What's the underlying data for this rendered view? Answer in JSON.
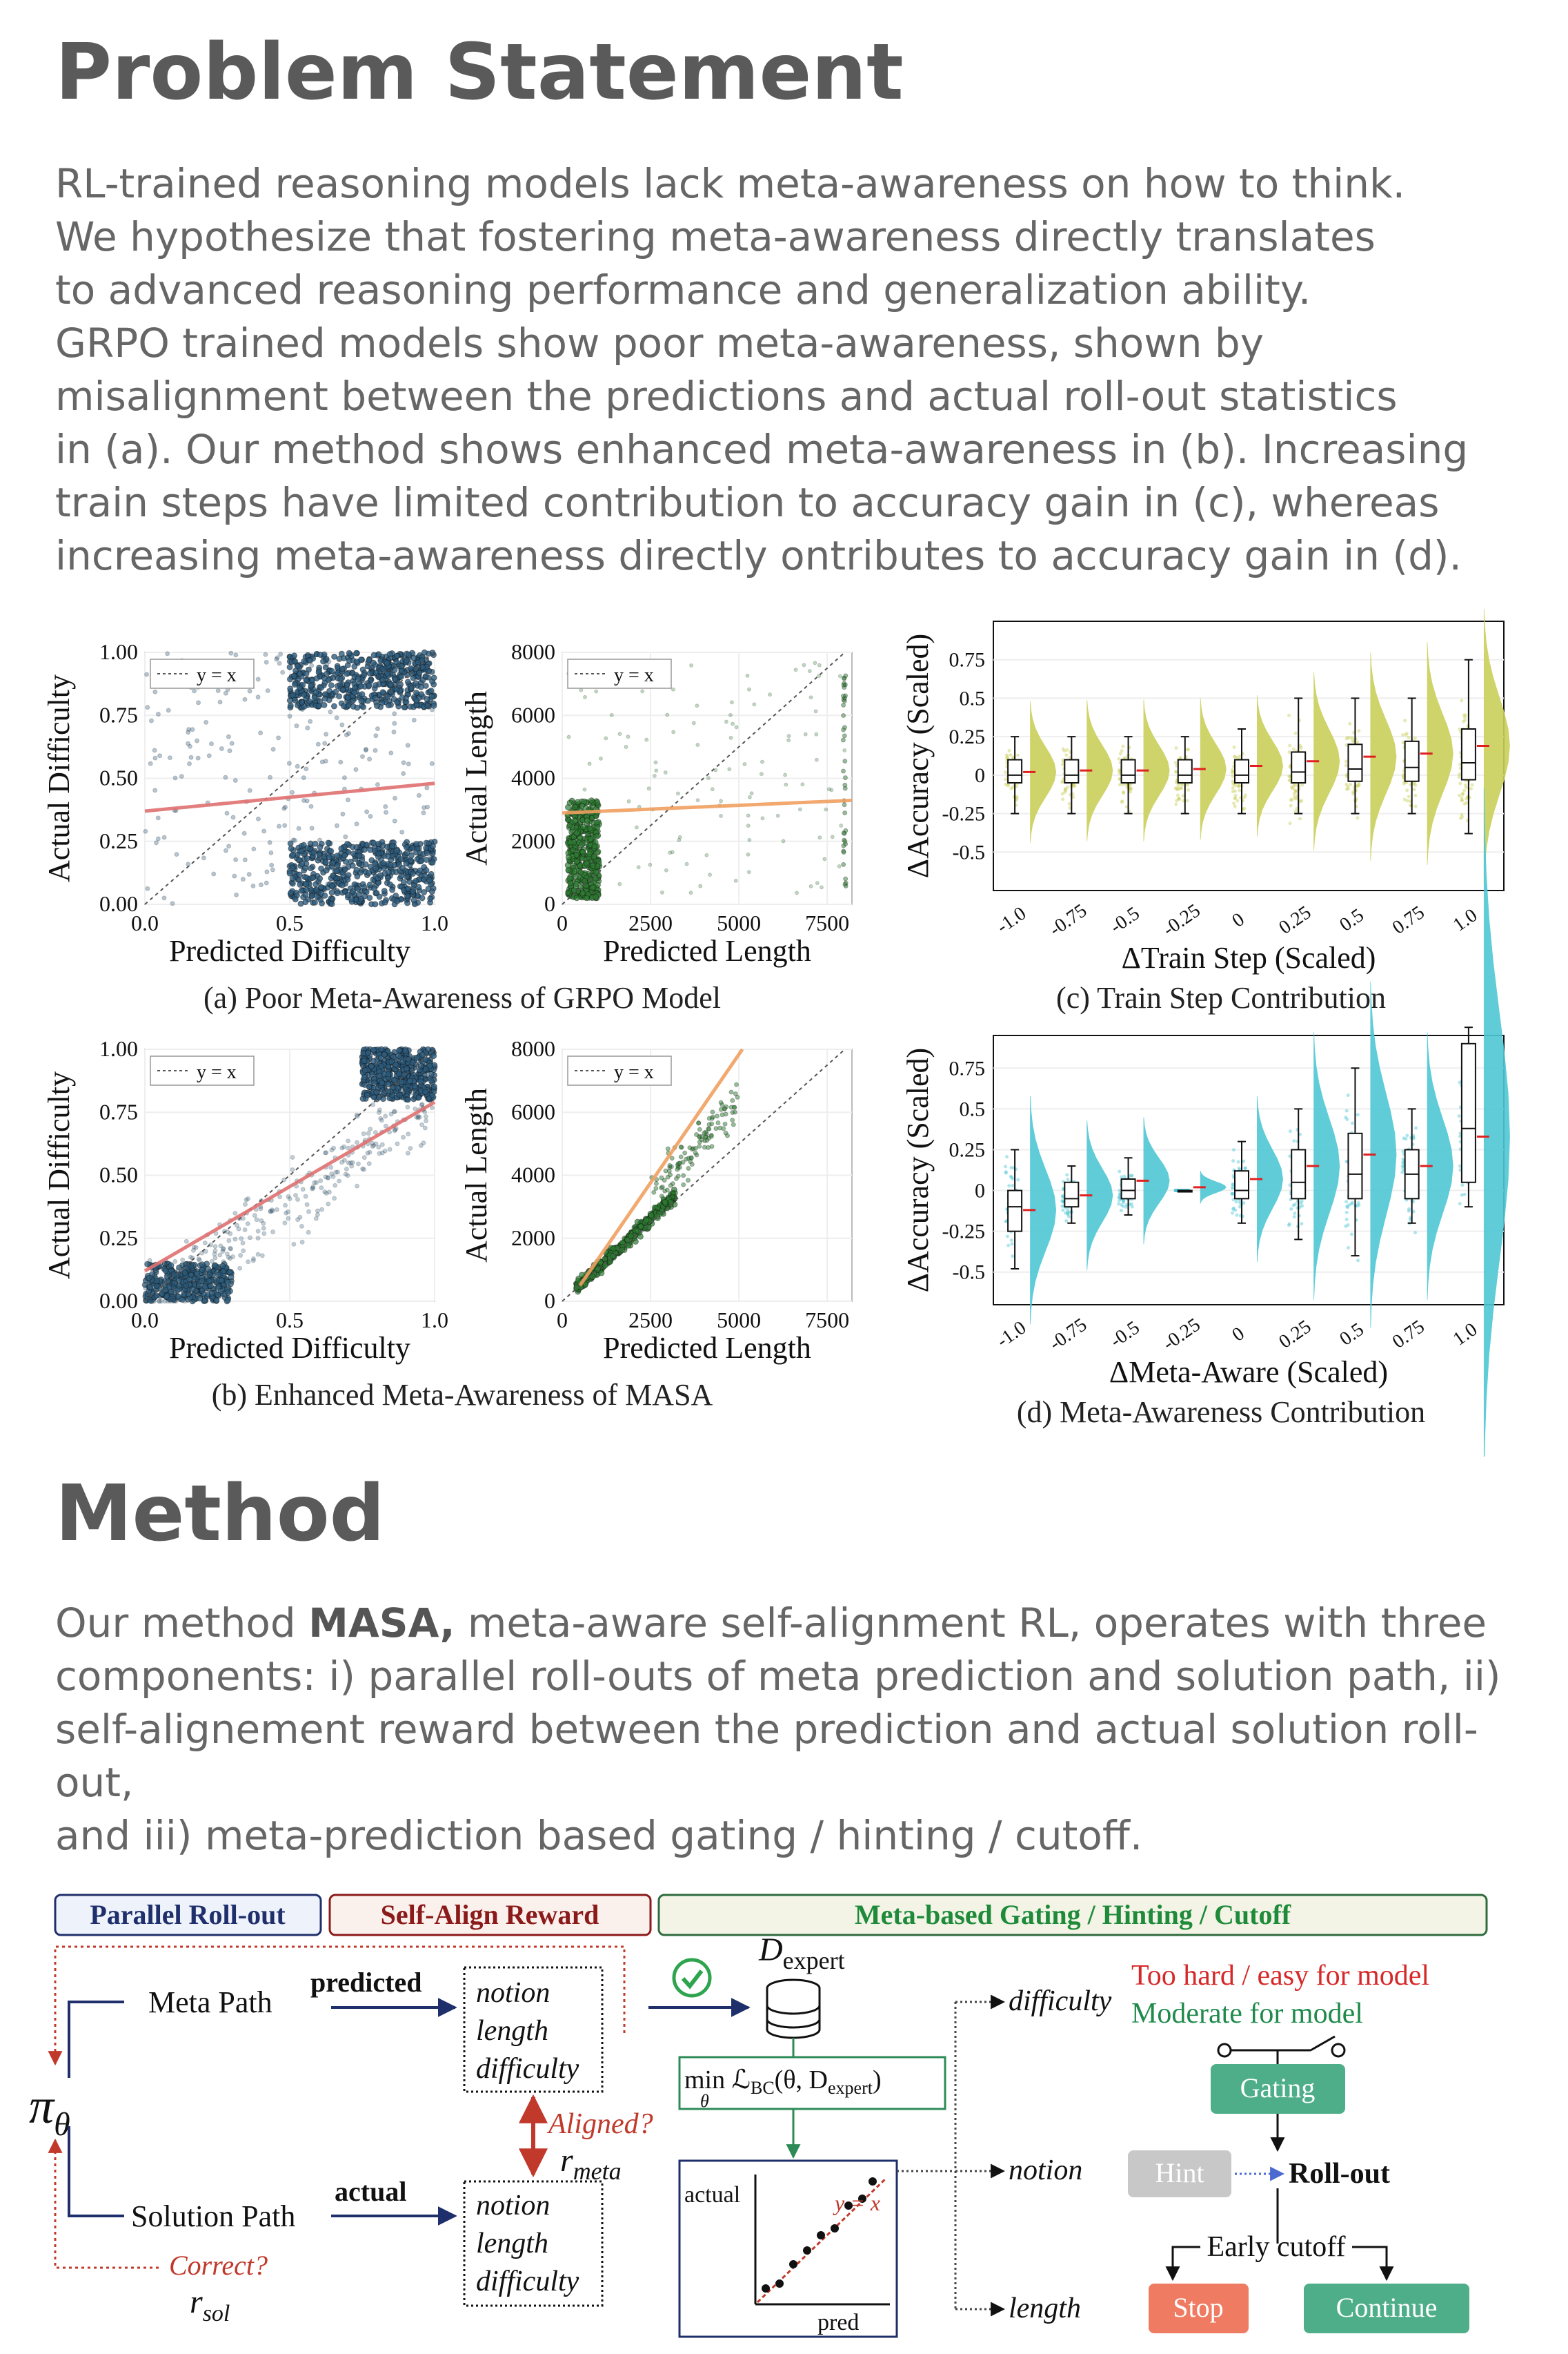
{
  "problem": {
    "heading": "Problem Statement",
    "lines": [
      "RL-trained reasoning models lack meta-awareness on how to think.",
      "We hypothesize that fostering meta-awareness directly translates",
      "to advanced reasoning performance and generalization ability.",
      "GRPO trained models show poor meta-awareness, shown by",
      "misalignment between the predictions and actual roll-out statistics",
      "in (a). Our method shows enhanced meta-awareness in (b). Increasing",
      "train steps have limited contribution to accuracy gain in (c), whereas",
      "increasing meta-awareness directly ontributes to accuracy gain in (d)."
    ]
  },
  "method": {
    "heading": "Method",
    "intro_prefix": "Our method ",
    "intro_bold": "MASA,",
    "intro_line1_rest": " meta-aware self-alignment RL, operates with three",
    "lines": [
      "components: i) parallel roll-outs of meta prediction and solution path, ii)",
      "self-alignement reward between the prediction and actual solution roll-out,",
      "and iii) meta-prediction based gating / hinting / cutoff."
    ]
  },
  "chart_data": [
    {
      "id": "a_difficulty",
      "type": "scatter",
      "panel_caption": "(a) Poor Meta-Awareness of GRPO Model",
      "xlabel": "Predicted Difficulty",
      "ylabel": "Actual Difficulty",
      "legend": "y = x",
      "xlim": [
        0,
        1
      ],
      "ylim": [
        0,
        1
      ],
      "xticks": [
        "0.0",
        "0.5",
        "1.0"
      ],
      "yticks": [
        "0.00",
        "0.25",
        "0.50",
        "0.75",
        "1.00"
      ],
      "fit_line": [
        [
          0,
          0.37
        ],
        [
          1,
          0.48
        ]
      ],
      "point_color": "#2d5d7e",
      "fit_color": "#e07070"
    },
    {
      "id": "a_length",
      "type": "scatter",
      "xlabel": "Predicted Length",
      "ylabel": "Actual Length",
      "legend": "y = x",
      "xlim": [
        0,
        8200
      ],
      "ylim": [
        0,
        8000
      ],
      "xticks": [
        "0",
        "2500",
        "5000",
        "7500"
      ],
      "yticks": [
        "0",
        "2000",
        "4000",
        "6000",
        "8000"
      ],
      "fit_line": [
        [
          0,
          2900
        ],
        [
          8200,
          3300
        ]
      ],
      "point_color": "#2e7d32",
      "fit_color": "#f0a060"
    },
    {
      "id": "b_difficulty",
      "type": "scatter",
      "panel_caption": "(b) Enhanced Meta-Awareness of MASA",
      "xlabel": "Predicted Difficulty",
      "ylabel": "Actual Difficulty",
      "legend": "y = x",
      "xlim": [
        0,
        1
      ],
      "ylim": [
        0,
        1
      ],
      "xticks": [
        "0.0",
        "0.5",
        "1.0"
      ],
      "yticks": [
        "0.00",
        "0.25",
        "0.50",
        "0.75",
        "1.00"
      ],
      "fit_line": [
        [
          0,
          0.12
        ],
        [
          1,
          0.79
        ]
      ],
      "point_color": "#2d5d7e",
      "fit_color": "#e07070"
    },
    {
      "id": "b_length",
      "type": "scatter",
      "xlabel": "Predicted Length",
      "ylabel": "Actual Length",
      "legend": "y = x",
      "xlim": [
        0,
        8200
      ],
      "ylim": [
        0,
        8000
      ],
      "xticks": [
        "0",
        "2500",
        "5000",
        "7500"
      ],
      "yticks": [
        "0",
        "2000",
        "4000",
        "6000",
        "8000"
      ],
      "fit_line": [
        [
          500,
          500
        ],
        [
          5100,
          8000
        ]
      ],
      "point_color": "#2e7d32",
      "fit_color": "#f0a060"
    },
    {
      "id": "c_train_step",
      "type": "box",
      "panel_caption": "(c) Train Step Contribution",
      "xlabel": "ΔTrain Step (Scaled)",
      "ylabel": "ΔAccuracy (Scaled)",
      "categories": [
        "-1.0",
        "-0.75",
        "-0.5",
        "-0.25",
        "0",
        "0.25",
        "0.5",
        "0.75",
        "1.0"
      ],
      "yticks": [
        "-0.5",
        "-0.25",
        "0",
        "0.25",
        "0.5",
        "0.75"
      ],
      "ylim": [
        -0.75,
        1.0
      ],
      "medians": [
        0.0,
        0.0,
        0.0,
        0.0,
        0.0,
        0.02,
        0.04,
        0.05,
        0.08
      ],
      "means": [
        0.02,
        0.03,
        0.03,
        0.04,
        0.06,
        0.09,
        0.12,
        0.14,
        0.19
      ],
      "q1": [
        -0.05,
        -0.05,
        -0.05,
        -0.05,
        -0.05,
        -0.05,
        -0.04,
        -0.04,
        -0.03
      ],
      "q3": [
        0.1,
        0.1,
        0.1,
        0.1,
        0.1,
        0.15,
        0.2,
        0.22,
        0.3
      ],
      "whisker_low": [
        -0.25,
        -0.25,
        -0.25,
        -0.25,
        -0.25,
        -0.25,
        -0.25,
        -0.25,
        -0.38
      ],
      "whisker_high": [
        0.25,
        0.25,
        0.25,
        0.25,
        0.3,
        0.5,
        0.5,
        0.5,
        0.75
      ],
      "color": "#c9cf5a"
    },
    {
      "id": "d_meta_aware",
      "type": "box",
      "panel_caption": "(d) Meta-Awareness Contribution",
      "xlabel": "ΔMeta-Aware (Scaled)",
      "ylabel": "ΔAccuracy (Scaled)",
      "categories": [
        "-1.0",
        "-0.75",
        "-0.5",
        "-0.25",
        "0",
        "0.25",
        "0.5",
        "0.75",
        "1.0"
      ],
      "yticks": [
        "-0.5",
        "-0.25",
        "0",
        "0.25",
        "0.5",
        "0.75"
      ],
      "ylim": [
        -0.7,
        0.95
      ],
      "medians": [
        -0.1,
        -0.05,
        0.0,
        0.0,
        0.0,
        0.05,
        0.1,
        0.1,
        0.38
      ],
      "means": [
        -0.12,
        -0.03,
        0.06,
        0.02,
        0.07,
        0.15,
        0.22,
        0.15,
        0.33
      ],
      "q1": [
        -0.25,
        -0.1,
        -0.05,
        0.0,
        -0.05,
        -0.05,
        -0.05,
        -0.05,
        0.05
      ],
      "q3": [
        0.0,
        0.05,
        0.07,
        0.0,
        0.12,
        0.25,
        0.35,
        0.25,
        0.9
      ],
      "whisker_low": [
        -0.48,
        -0.2,
        -0.15,
        0.0,
        -0.2,
        -0.3,
        -0.4,
        -0.2,
        -0.1
      ],
      "whisker_high": [
        0.25,
        0.15,
        0.2,
        0.0,
        0.3,
        0.5,
        0.75,
        0.5,
        1.0
      ],
      "color": "#4ec6d4"
    }
  ],
  "diagram": {
    "box_parallel": "Parallel Roll-out",
    "box_selfalign": "Self-Align Reward",
    "box_gating": "Meta-based Gating / Hinting / Cutoff",
    "pi_theta": "π",
    "pi_sub": "θ",
    "meta_path": "Meta Path",
    "predicted": "predicted",
    "solution_path": "Solution Path",
    "actual": "actual",
    "meta_box_items": [
      "notion",
      "length",
      "difficulty"
    ],
    "sol_box_items": [
      "notion",
      "length",
      "difficulty"
    ],
    "aligned": "Aligned?",
    "r_meta": "r",
    "r_meta_sub": "meta",
    "correct": "Correct?",
    "r_sol": "r",
    "r_sol_sub": "sol",
    "d_expert": "D",
    "d_expert_sub": "expert",
    "min_loss": "min ℒ",
    "min_loss_sub": "BC",
    "min_loss_args": "(θ, D",
    "min_loss_args_sub": "expert",
    "min_loss_close": ")",
    "min_theta": "θ",
    "mini_actual": "actual",
    "mini_pred": "pred",
    "mini_yx": "y = x",
    "branch_difficulty": "difficulty",
    "branch_notion": "notion",
    "branch_length": "length",
    "too_hard": "Too hard / easy for model",
    "moderate": "Moderate for model",
    "gating": "Gating",
    "hint": "Hint",
    "rollout": "Roll-out",
    "early_cutoff": "Early cutoff",
    "stop": "Stop",
    "continue": "Continue",
    "colors": {
      "navy": "#1f2f6b",
      "red": "#c0392b",
      "green": "#2e8b57",
      "teal_btn": "#4fae8a",
      "stop_btn": "#ef7b62",
      "hint_btn": "#c8c8c8"
    }
  }
}
